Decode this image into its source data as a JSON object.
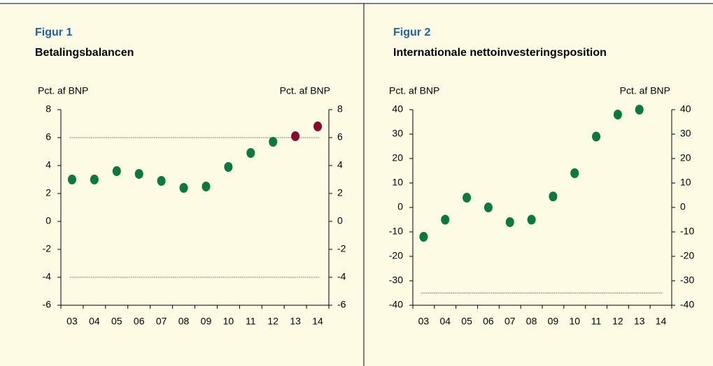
{
  "chart_data": [
    {
      "type": "dot",
      "title": "Figur 1",
      "subtitle": "Betalingsbalancen",
      "y_label": "Pct. af BNP",
      "y2_label": "Pct. af BNP",
      "categories": [
        "03",
        "04",
        "05",
        "06",
        "07",
        "08",
        "09",
        "10",
        "11",
        "12",
        "13",
        "14"
      ],
      "values": [
        3.0,
        3.0,
        3.6,
        3.4,
        2.9,
        2.4,
        2.5,
        3.9,
        4.9,
        5.7,
        6.1,
        6.8
      ],
      "colors": [
        "#0a7a3c",
        "#0a7a3c",
        "#0a7a3c",
        "#0a7a3c",
        "#0a7a3c",
        "#0a7a3c",
        "#0a7a3c",
        "#0a7a3c",
        "#0a7a3c",
        "#0a7a3c",
        "#8c0a30",
        "#8c0a30"
      ],
      "ylim": [
        -6,
        8
      ],
      "yticks": [
        -6,
        -4,
        -2,
        0,
        2,
        4,
        6,
        8
      ],
      "y2lim": [
        -6,
        8
      ],
      "y2ticks": [
        -6,
        -4,
        -2,
        0,
        2,
        4,
        6,
        8
      ],
      "reference_lines": [
        6,
        -4
      ]
    },
    {
      "type": "dot",
      "title": "Figur 2",
      "subtitle": "Internationale nettoinvesteringsposition",
      "y_label": "Pct. af BNP",
      "y2_label": "Pct. af BNP",
      "categories": [
        "03",
        "04",
        "05",
        "06",
        "07",
        "08",
        "09",
        "10",
        "11",
        "12",
        "13",
        "14"
      ],
      "values": [
        -12,
        -5,
        4,
        0,
        -6,
        -5,
        4.5,
        14,
        29,
        38,
        40,
        null
      ],
      "color": "#0a7a3c",
      "ylim": [
        -40,
        40
      ],
      "yticks": [
        -40,
        -30,
        -20,
        -10,
        0,
        10,
        20,
        30,
        40
      ],
      "y2lim": [
        -40,
        40
      ],
      "y2ticks": [
        -40,
        -30,
        -20,
        -10,
        0,
        10,
        20,
        30,
        40
      ],
      "reference_lines": [
        -35
      ]
    }
  ]
}
